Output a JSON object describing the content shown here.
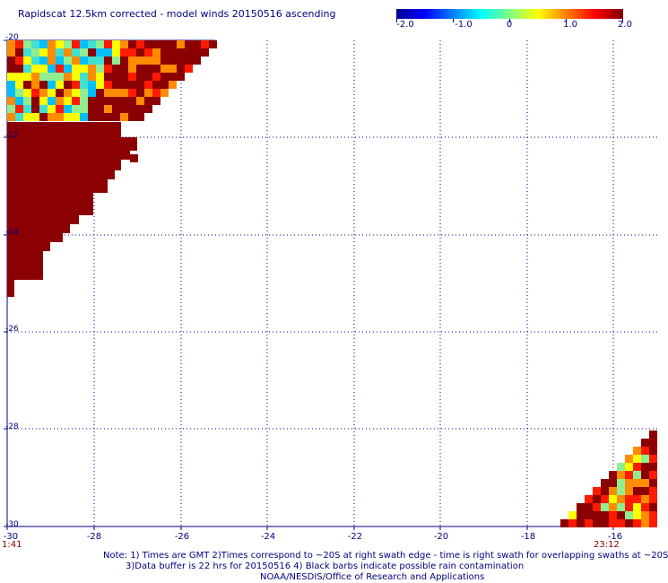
{
  "title": "Rapidscat 12.5km corrected - model winds 20150516 ascending",
  "colorbar": {
    "ticks": [
      "-2.0",
      "-1.0",
      "0",
      "1.0",
      "2.0"
    ],
    "range": [
      -2.0,
      2.0
    ]
  },
  "map": {
    "lon_range": [
      -30,
      -15
    ],
    "lat_range": [
      -30,
      -20
    ],
    "lon_ticks": [
      "-30",
      "-28",
      "-26",
      "-24",
      "-22",
      "-20",
      "-18",
      "-16"
    ],
    "lat_ticks": [
      "-20",
      "-22",
      "-24",
      "-26",
      "-28",
      "-30"
    ],
    "grid": "dotted"
  },
  "times": {
    "left": "1:41",
    "right": "23:12"
  },
  "notes": [
    "Note: 1) Times are GMT 2)Times correspond to ~20S at right swath edge - time is right swath for overlapping swaths at ~20S",
    "3)Data buffer is 22 hrs for 20150516 4) Black barbs indicate possible rain contamination",
    "NOAA/NESDIS/Office of Research and Applications"
  ],
  "colors": {
    "dark_red": "#8b0000",
    "red": "#ff1a00",
    "orange": "#ff8c00",
    "yellow": "#ffff00",
    "green": "#90ee90",
    "cyan": "#40e0d0",
    "light_blue": "#00bfff",
    "axis": "#000080"
  }
}
